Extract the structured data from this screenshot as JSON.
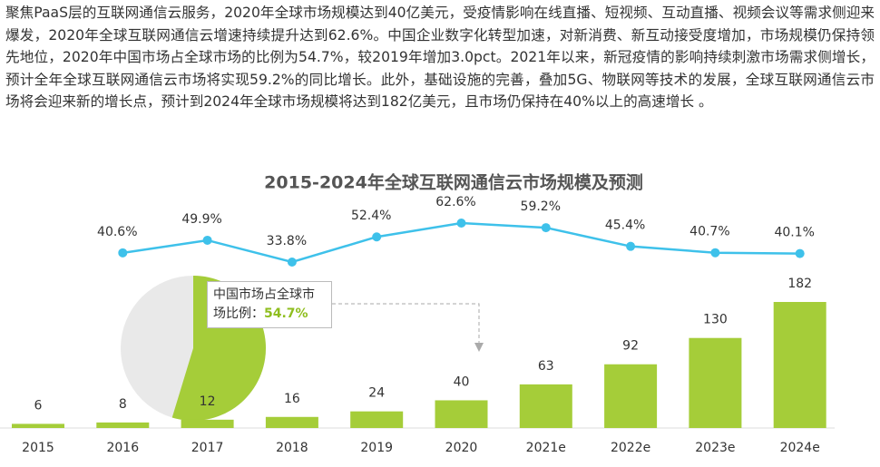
{
  "paragraph": "聚焦PaaS层的互联网通信云服务，2020年全球市场规模达到40亿美元，受疫情影响在线直播、短视频、互动直播、视频会议等需求侧迎来爆发，2020年全球互联网通信云增速持续提升达到62.6%。中国企业数字化转型加速，对新消费、新互动接受度增加，市场规模仍保持领先地位，2020年中国市场占全球市场的比例为54.7%，较2019年增加3.0pct。2021年以来，新冠疫情的影响持续刺激市场需求侧增长，预计全年全球互联网通信云市场将实现59.2%的同比增长。此外，基础设施的完善，叠加5G、物联网等技术的发展，全球互联网通信云市场将会迎来新的增长点，预计到2024年全球市场规模将达到182亿美元，且市场仍保持在40%以上的高速增长 。",
  "chart_data": {
    "type": "bar",
    "title": "2015-2024年全球互联网通信云市场规模及预测",
    "categories": [
      "2015",
      "2016",
      "2017",
      "2018",
      "2019",
      "2020",
      "2021e",
      "2022e",
      "2023e",
      "2024e"
    ],
    "bars": {
      "values": [
        6,
        8,
        12,
        16,
        24,
        40,
        63,
        92,
        130,
        182
      ],
      "color": "#a5cd39"
    },
    "line": {
      "values": [
        40.6,
        49.9,
        33.8,
        52.4,
        62.6,
        59.2,
        45.4,
        40.7,
        40.1
      ],
      "value_labels": [
        "40.6%",
        "49.9%",
        "33.8%",
        "52.4%",
        "62.6%",
        "59.2%",
        "45.4%",
        "40.7%",
        "40.1%"
      ],
      "color": "#3ec1ea"
    },
    "inset": {
      "type": "pie",
      "label": "中国市场占全球市场比例：",
      "values": [
        54.7
      ],
      "value_labels": [
        "54.7%"
      ],
      "colors": [
        "#a5cd39",
        "#e9e9e9"
      ]
    }
  }
}
